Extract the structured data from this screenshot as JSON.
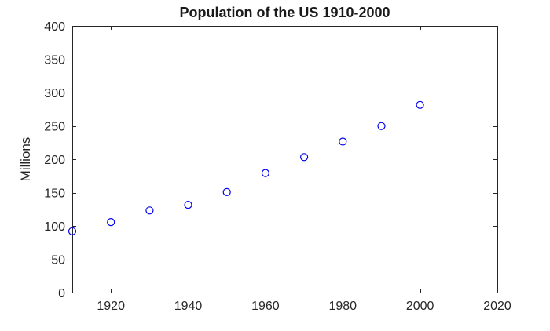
{
  "figure": {
    "background": "#ffffff"
  },
  "chart_data": {
    "type": "scatter",
    "title": "Population of the US 1910-2000",
    "xlabel": "",
    "ylabel": "Millions",
    "x": [
      1910,
      1920,
      1930,
      1940,
      1950,
      1960,
      1970,
      1980,
      1990,
      2000
    ],
    "values": [
      91.97,
      105.71,
      123.2,
      131.67,
      150.7,
      179.32,
      203.21,
      226.5,
      249.63,
      281.42
    ],
    "xlim": [
      1910,
      2020
    ],
    "ylim": [
      0,
      400
    ],
    "xticks": [
      1920,
      1940,
      1960,
      1980,
      2000,
      2020
    ],
    "yticks": [
      0,
      50,
      100,
      150,
      200,
      250,
      300,
      350,
      400
    ],
    "grid": false,
    "legend": null,
    "marker": "open-circle",
    "marker_color": "#0000EE",
    "axis_color": "#262626",
    "box": true,
    "tick_direction": "in"
  }
}
